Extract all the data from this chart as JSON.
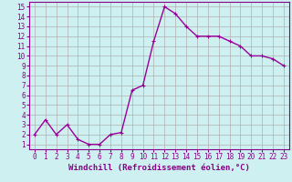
{
  "x": [
    0,
    1,
    2,
    3,
    4,
    5,
    6,
    7,
    8,
    9,
    10,
    11,
    12,
    13,
    14,
    15,
    16,
    17,
    18,
    19,
    20,
    21,
    22,
    23
  ],
  "y": [
    2,
    3.5,
    2,
    3,
    1.5,
    1,
    1,
    2,
    2.2,
    6.5,
    7,
    11.5,
    15,
    14.3,
    13,
    12,
    12,
    12,
    11.5,
    11,
    10,
    10,
    9.7,
    9
  ],
  "line_color": "#990099",
  "marker": "+",
  "bg_color": "#cff0f0",
  "grid_color": "#b0b0b0",
  "xlabel": "Windchill (Refroidissement éolien,°C)",
  "xlim": [
    -0.5,
    23.5
  ],
  "ylim": [
    0.5,
    15.5
  ],
  "yticks": [
    1,
    2,
    3,
    4,
    5,
    6,
    7,
    8,
    9,
    10,
    11,
    12,
    13,
    14,
    15
  ],
  "xticks": [
    0,
    1,
    2,
    3,
    4,
    5,
    6,
    7,
    8,
    9,
    10,
    11,
    12,
    13,
    14,
    15,
    16,
    17,
    18,
    19,
    20,
    21,
    22,
    23
  ],
  "axis_color": "#880088",
  "label_fontsize": 6.5,
  "tick_fontsize": 5.5,
  "linewidth": 1.0,
  "markersize": 3,
  "markeredgewidth": 0.8
}
